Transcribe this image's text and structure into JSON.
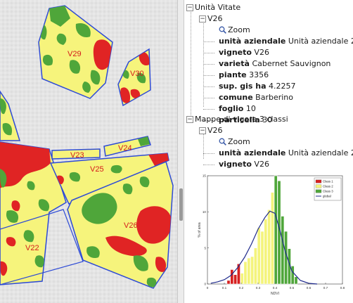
{
  "map": {
    "parcels": [
      "V29",
      "V30",
      "V23",
      "V24",
      "V25",
      "V26",
      "V22"
    ],
    "colors": {
      "outline": "#2e4bd6",
      "high": "#e02424",
      "medium": "#f6f47c",
      "low": "#4fa63a",
      "background": "#e4e4e4",
      "label": "#d41b1b"
    }
  },
  "tree": {
    "unita_vitate": {
      "label": "Unità Vitate",
      "parcel": "V26",
      "zoom": "Zoom",
      "fields": [
        {
          "key": "unità aziendale",
          "value": "Unità aziendale 2"
        },
        {
          "key": "vigneto",
          "value": "V26"
        },
        {
          "key": "varietà",
          "value": "Cabernet Sauvignon"
        },
        {
          "key": "piante",
          "value": "3356"
        },
        {
          "key": "sup. gis ha",
          "value": "4.2257"
        },
        {
          "key": "comune",
          "value": "Barberino"
        },
        {
          "key": "foglio",
          "value": "10"
        },
        {
          "key": "particella",
          "value": "30"
        }
      ]
    },
    "mappe": {
      "label": "Mappe di vigore 3 classi",
      "parcel": "V26",
      "zoom": "Zoom",
      "fields": [
        {
          "key": "unità aziendale",
          "value": "Unità aziendale 2"
        },
        {
          "key": "vigneto",
          "value": "V26"
        }
      ]
    }
  },
  "chart_data": {
    "type": "bar",
    "xlabel": "NDVI",
    "ylabel": "% of area",
    "xlim": [
      0,
      0.8
    ],
    "ylim": [
      0,
      15
    ],
    "xticks": [
      "0",
      "0.1",
      "0.2",
      "0.3",
      "0.4",
      "0.5",
      "0.6",
      "0.7",
      "0.8"
    ],
    "yticks": [
      "0",
      "5",
      "10",
      "15"
    ],
    "legend_position": "top-right",
    "grid": false,
    "bin_width": 0.018,
    "series": [
      {
        "name": "Class 1",
        "color": "#d62020",
        "x": [
          0.125,
          0.145,
          0.165,
          0.185
        ],
        "values": [
          0.5,
          2.0,
          1.3,
          2.8
        ]
      },
      {
        "name": "Class 2",
        "color": "#f4f47c",
        "x": [
          0.205,
          0.225,
          0.245,
          0.265,
          0.285,
          0.305,
          0.325,
          0.345,
          0.365,
          0.385
        ],
        "values": [
          1.5,
          3.1,
          3.6,
          3.8,
          5.0,
          7.8,
          7.3,
          9.0,
          10.3,
          12.7
        ]
      },
      {
        "name": "Class 3",
        "color": "#4fa63a",
        "x": [
          0.405,
          0.425,
          0.445,
          0.465,
          0.485,
          0.505,
          0.525
        ],
        "values": [
          15.0,
          14.3,
          9.4,
          7.3,
          4.9,
          2.5,
          1.0
        ]
      },
      {
        "name": "global",
        "color": "#1f2a8c",
        "type": "line",
        "x": [
          0.02,
          0.06,
          0.1,
          0.14,
          0.18,
          0.22,
          0.26,
          0.3,
          0.34,
          0.37,
          0.4,
          0.43,
          0.46,
          0.5,
          0.55,
          0.6,
          0.65
        ],
        "values": [
          0.1,
          0.3,
          0.6,
          1.2,
          2.3,
          3.7,
          5.5,
          7.6,
          9.2,
          10.1,
          9.8,
          7.4,
          4.6,
          1.8,
          0.5,
          0.1,
          0.0
        ]
      }
    ]
  }
}
